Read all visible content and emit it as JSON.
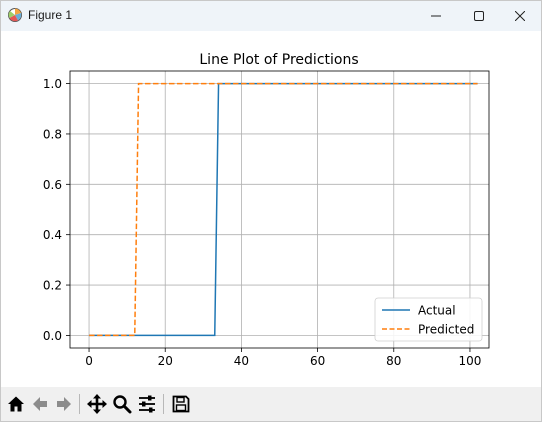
{
  "window": {
    "title": "Figure 1",
    "app_icon": "matplotlib-figure-icon",
    "controls": [
      "minimize-icon",
      "maximize-icon",
      "close-icon"
    ]
  },
  "toolbar": {
    "tools": [
      "home-icon",
      "back-arrow-icon",
      "forward-arrow-icon",
      "pan-move-icon",
      "zoom-magnifier-icon",
      "configure-subplots-icon",
      "save-floppy-icon"
    ],
    "status_text": ""
  },
  "colors": {
    "actual": "#1f77b4",
    "predicted": "#ff7f0e",
    "grid": "#b0b0b0",
    "titlebar": "#eff4f9",
    "toolbar": "#f0f0f0"
  },
  "chart_data": {
    "type": "line",
    "title": "Line Plot of Predictions",
    "xlabel": "",
    "ylabel": "",
    "xlim": [
      -5,
      105
    ],
    "ylim": [
      -0.05,
      1.05
    ],
    "xticks": [
      0,
      20,
      40,
      60,
      80,
      100
    ],
    "yticks": [
      0.0,
      0.2,
      0.4,
      0.6,
      0.8,
      1.0
    ],
    "xtick_labels": [
      "0",
      "20",
      "40",
      "60",
      "80",
      "100"
    ],
    "ytick_labels": [
      "0.0",
      "0.2",
      "0.4",
      "0.6",
      "0.8",
      "1.0"
    ],
    "grid": true,
    "legend_position": "lower right",
    "series": [
      {
        "name": "Actual",
        "style": "solid",
        "color": "#1f77b4",
        "x": [
          0,
          33,
          34,
          102
        ],
        "y": [
          0,
          0,
          1,
          1
        ]
      },
      {
        "name": "Predicted",
        "style": "dashed",
        "color": "#ff7f0e",
        "x": [
          0,
          12,
          13,
          102
        ],
        "y": [
          0,
          0,
          1,
          1
        ]
      }
    ]
  }
}
